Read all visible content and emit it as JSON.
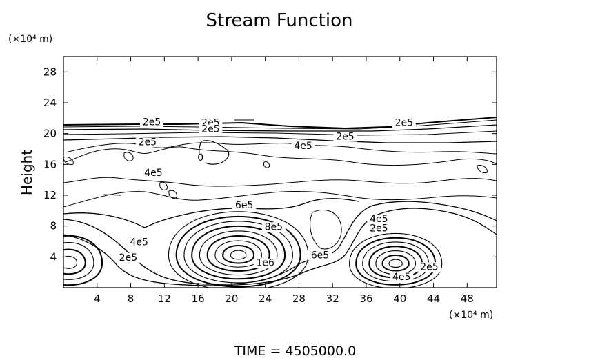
{
  "chart_data": {
    "type": "contour",
    "title": "Stream Function",
    "ylabel": "Height",
    "y_unit": "(×10⁴ m)",
    "x_unit": "(×10⁴ m)",
    "xlim": [
      0,
      51.5
    ],
    "ylim": [
      0,
      30
    ],
    "x_ticks": [
      4,
      8,
      12,
      16,
      20,
      24,
      28,
      32,
      36,
      40,
      44,
      48
    ],
    "y_ticks": [
      4,
      8,
      12,
      16,
      20,
      24,
      28
    ],
    "footer": "TIME  =  4505000.0",
    "contour_labels": [
      {
        "text": "2e5",
        "x": 10.5,
        "y": 21.1
      },
      {
        "text": "2e5",
        "x": 17.5,
        "y": 21.0
      },
      {
        "text": "2e5",
        "x": 17.5,
        "y": 20.2
      },
      {
        "text": "2e5",
        "x": 40.5,
        "y": 21.0
      },
      {
        "text": "2e5",
        "x": 33.5,
        "y": 19.2
      },
      {
        "text": "2e5",
        "x": 10.0,
        "y": 18.5
      },
      {
        "text": "4e5",
        "x": 28.5,
        "y": 18.0
      },
      {
        "text": "0",
        "x": 16.3,
        "y": 16.5
      },
      {
        "text": "4e5",
        "x": 10.7,
        "y": 14.5
      },
      {
        "text": "6e5",
        "x": 21.5,
        "y": 10.3
      },
      {
        "text": "8e5",
        "x": 25.0,
        "y": 7.5
      },
      {
        "text": "4e5",
        "x": 37.5,
        "y": 8.5
      },
      {
        "text": "2e5",
        "x": 37.5,
        "y": 7.3
      },
      {
        "text": "4e5",
        "x": 9.0,
        "y": 5.5
      },
      {
        "text": "2e5",
        "x": 7.7,
        "y": 3.5
      },
      {
        "text": "1e6",
        "x": 24.0,
        "y": 2.8
      },
      {
        "text": "6e5",
        "x": 30.5,
        "y": 3.8
      },
      {
        "text": "4e5",
        "x": 40.2,
        "y": 1.0
      },
      {
        "text": "2e5",
        "x": 43.5,
        "y": 2.3
      }
    ],
    "features": [
      {
        "kind": "vortex",
        "center": [
          20.8,
          4.2
        ],
        "rings": 9,
        "rx": 8.3,
        "ry": 7.2
      },
      {
        "kind": "vortex",
        "center": [
          39.5,
          3.1
        ],
        "rings": 7,
        "rx": 5.5,
        "ry": 5.0
      },
      {
        "kind": "vortex",
        "center": [
          0.6,
          3.2
        ],
        "rings": 4,
        "rx": 4.0,
        "ry": 4.5
      }
    ]
  }
}
